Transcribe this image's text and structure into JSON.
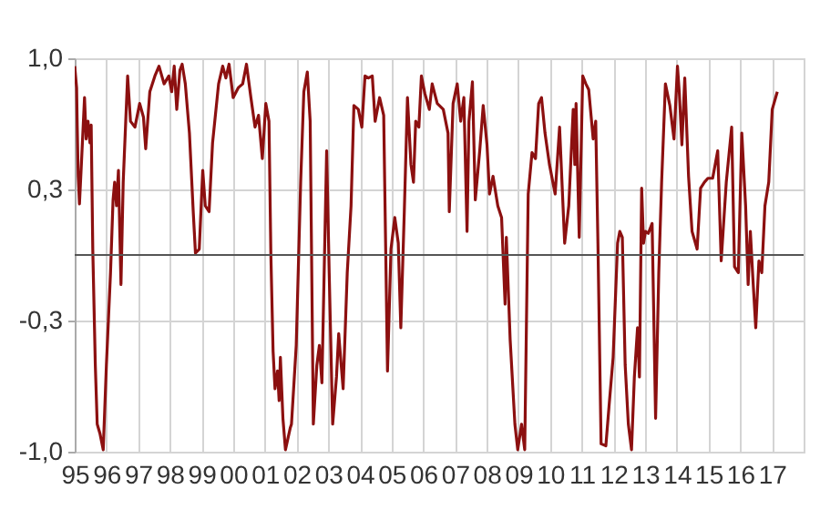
{
  "chart_data": {
    "type": "line",
    "x": [
      1995.0,
      1995.06,
      1995.08,
      1995.11,
      1995.15,
      1995.21,
      1995.31,
      1995.36,
      1995.42,
      1995.48,
      1995.52,
      1995.57,
      1995.65,
      1995.71,
      1995.8,
      1995.9,
      1996.0,
      1996.13,
      1996.21,
      1996.26,
      1996.32,
      1996.38,
      1996.46,
      1996.53,
      1996.61,
      1996.67,
      1996.76,
      1996.9,
      1997.05,
      1997.17,
      1997.24,
      1997.37,
      1997.53,
      1997.66,
      1997.82,
      1997.97,
      1998.06,
      1998.14,
      1998.22,
      1998.32,
      1998.39,
      1998.49,
      1998.62,
      1998.74,
      1998.81,
      1998.93,
      1999.04,
      1999.12,
      1999.24,
      1999.35,
      1999.54,
      1999.67,
      1999.77,
      1999.87,
      2000.0,
      2000.16,
      2000.3,
      2000.42,
      2000.56,
      2000.69,
      2000.8,
      2000.92,
      2001.03,
      2001.13,
      2001.19,
      2001.26,
      2001.32,
      2001.4,
      2001.45,
      2001.49,
      2001.57,
      2001.65,
      2001.8,
      2001.84,
      2001.99,
      2002.13,
      2002.23,
      2002.34,
      2002.43,
      2002.53,
      2002.64,
      2002.72,
      2002.8,
      2002.95,
      2003.03,
      2003.14,
      2003.26,
      2003.33,
      2003.47,
      2003.6,
      2003.72,
      2003.81,
      2003.95,
      2004.06,
      2004.16,
      2004.27,
      2004.39,
      2004.48,
      2004.62,
      2004.75,
      2004.87,
      2004.98,
      2005.1,
      2005.21,
      2005.29,
      2005.4,
      2005.5,
      2005.61,
      2005.69,
      2005.76,
      2005.86,
      2005.94,
      2006.05,
      2006.19,
      2006.28,
      2006.44,
      2006.63,
      2006.78,
      2006.82,
      2006.94,
      2007.07,
      2007.18,
      2007.28,
      2007.38,
      2007.44,
      2007.55,
      2007.64,
      2007.78,
      2007.89,
      2008.01,
      2008.09,
      2008.2,
      2008.35,
      2008.47,
      2008.58,
      2008.62,
      2008.74,
      2008.89,
      2008.98,
      2009.1,
      2009.2,
      2009.31,
      2009.43,
      2009.54,
      2009.64,
      2009.73,
      2009.84,
      2009.98,
      2010.16,
      2010.3,
      2010.46,
      2010.59,
      2010.73,
      2010.78,
      2010.82,
      2010.92,
      2011.03,
      2011.13,
      2011.22,
      2011.36,
      2011.44,
      2011.51,
      2011.61,
      2011.76,
      2011.86,
      2011.99,
      2012.13,
      2012.2,
      2012.28,
      2012.37,
      2012.47,
      2012.57,
      2012.66,
      2012.76,
      2012.82,
      2012.89,
      2012.95,
      2013.01,
      2013.1,
      2013.22,
      2013.33,
      2013.43,
      2013.52,
      2013.64,
      2013.78,
      2013.91,
      2014.02,
      2014.08,
      2014.16,
      2014.25,
      2014.37,
      2014.48,
      2014.64,
      2014.75,
      2014.87,
      2014.98,
      2015.13,
      2015.29,
      2015.4,
      2015.56,
      2015.73,
      2015.82,
      2015.94,
      2016.05,
      2016.17,
      2016.25,
      2016.32,
      2016.4,
      2016.49,
      2016.59,
      2016.68,
      2016.78,
      2016.9,
      2017.01,
      2017.17
    ],
    "series": [
      {
        "color": "#8c1010",
        "values": [
          0.96,
          0.85,
          0.65,
          0.4,
          0.26,
          0.46,
          0.8,
          0.59,
          0.68,
          0.57,
          0.66,
          0.03,
          -0.56,
          -0.86,
          -0.91,
          -0.99,
          -0.56,
          -0.09,
          0.28,
          0.37,
          0.25,
          0.43,
          -0.15,
          0.37,
          0.68,
          0.91,
          0.68,
          0.65,
          0.77,
          0.7,
          0.54,
          0.83,
          0.91,
          0.96,
          0.87,
          0.91,
          0.83,
          0.96,
          0.74,
          0.94,
          0.97,
          0.87,
          0.62,
          0.22,
          0.01,
          0.03,
          0.43,
          0.25,
          0.22,
          0.57,
          0.87,
          0.96,
          0.9,
          0.97,
          0.8,
          0.85,
          0.87,
          0.97,
          0.8,
          0.65,
          0.71,
          0.49,
          0.77,
          0.68,
          0.0,
          -0.49,
          -0.68,
          -0.59,
          -0.74,
          -0.52,
          -0.83,
          -0.99,
          -0.88,
          -0.86,
          -0.46,
          0.37,
          0.83,
          0.93,
          0.68,
          -0.86,
          -0.56,
          -0.46,
          -0.65,
          0.53,
          -0.09,
          -0.86,
          -0.62,
          -0.4,
          -0.68,
          -0.09,
          0.25,
          0.76,
          0.74,
          0.65,
          0.91,
          0.9,
          0.91,
          0.68,
          0.8,
          0.71,
          -0.59,
          0.03,
          0.19,
          0.06,
          -0.37,
          0.22,
          0.8,
          0.46,
          0.37,
          0.68,
          0.65,
          0.91,
          0.82,
          0.74,
          0.87,
          0.77,
          0.74,
          0.62,
          0.22,
          0.77,
          0.87,
          0.68,
          0.8,
          0.12,
          0.68,
          0.88,
          0.28,
          0.53,
          0.76,
          0.56,
          0.31,
          0.4,
          0.25,
          0.19,
          -0.25,
          0.09,
          -0.43,
          -0.86,
          -0.99,
          -0.86,
          -0.99,
          0.31,
          0.52,
          0.49,
          0.77,
          0.8,
          0.62,
          0.46,
          0.31,
          0.65,
          0.06,
          0.25,
          0.74,
          0.46,
          0.77,
          0.09,
          0.91,
          0.87,
          0.84,
          0.59,
          0.68,
          0.06,
          -0.96,
          -0.97,
          -0.77,
          -0.52,
          0.06,
          0.12,
          0.09,
          -0.56,
          -0.86,
          -0.99,
          -0.62,
          -0.37,
          -0.62,
          0.34,
          0.06,
          0.12,
          0.11,
          0.16,
          -0.83,
          -0.09,
          0.37,
          0.87,
          0.76,
          0.59,
          0.96,
          0.82,
          0.56,
          0.9,
          0.4,
          0.12,
          0.03,
          0.34,
          0.37,
          0.39,
          0.39,
          0.53,
          -0.03,
          0.37,
          0.65,
          -0.06,
          -0.09,
          0.62,
          0.25,
          -0.15,
          0.12,
          -0.12,
          -0.37,
          -0.03,
          -0.09,
          0.25,
          0.37,
          0.74,
          0.83
        ]
      }
    ],
    "xlim": [
      1995,
      2018
    ],
    "xticks": [
      {
        "value": 1995,
        "label": "95"
      },
      {
        "value": 1996,
        "label": "96"
      },
      {
        "value": 1997,
        "label": "97"
      },
      {
        "value": 1998,
        "label": "98"
      },
      {
        "value": 1999,
        "label": "99"
      },
      {
        "value": 2000,
        "label": "00"
      },
      {
        "value": 2001,
        "label": "01"
      },
      {
        "value": 2002,
        "label": "02"
      },
      {
        "value": 2003,
        "label": "03"
      },
      {
        "value": 2004,
        "label": "04"
      },
      {
        "value": 2005,
        "label": "05"
      },
      {
        "value": 2006,
        "label": "06"
      },
      {
        "value": 2007,
        "label": "07"
      },
      {
        "value": 2008,
        "label": "08"
      },
      {
        "value": 2009,
        "label": "09"
      },
      {
        "value": 2010,
        "label": "10"
      },
      {
        "value": 2011,
        "label": "11"
      },
      {
        "value": 2012,
        "label": "12"
      },
      {
        "value": 2013,
        "label": "13"
      },
      {
        "value": 2014,
        "label": "14"
      },
      {
        "value": 2015,
        "label": "15"
      },
      {
        "value": 2016,
        "label": "16"
      },
      {
        "value": 2017,
        "label": "17"
      }
    ],
    "ylim": [
      -1,
      1
    ],
    "yticks": [
      {
        "value": -1,
        "label": "-1,0"
      },
      {
        "value": -0.333,
        "label": "-0,3"
      },
      {
        "value": 0.333,
        "label": "0,3"
      },
      {
        "value": 1,
        "label": "1,0"
      }
    ],
    "ref_lines": [
      {
        "axis": "y",
        "value": 0,
        "color": "#555555"
      }
    ],
    "grid": true
  }
}
